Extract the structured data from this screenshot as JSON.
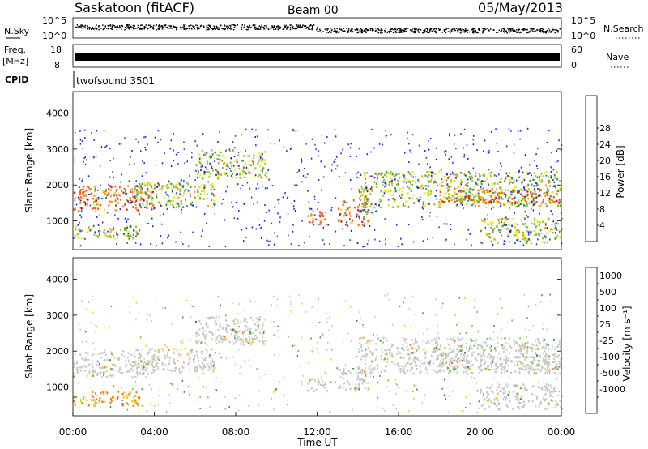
{
  "header": {
    "site": "Saskatoon (fitACF)",
    "beam": "Beam 00",
    "date": "05/May/2013"
  },
  "nsky_panel": {
    "left_label": "N.Sky",
    "right_label": "N.Search",
    "left_ticks": [
      "10^5",
      "10^0"
    ],
    "right_ticks": [
      "10^5",
      "10^0"
    ]
  },
  "freq_panel": {
    "left_label_1": "Freq.",
    "left_label_2": "[MHz]",
    "left_ticks": [
      "18",
      "8"
    ],
    "right_label": "Nave",
    "right_ticks": [
      "60",
      "0"
    ]
  },
  "cpid": {
    "label": "CPID",
    "value": "twofsound 3501"
  },
  "chart_data": [
    {
      "type": "heatmap",
      "name": "power",
      "ylabel": "Slant Range [km]",
      "yticks": [
        "1000",
        "2000",
        "3000",
        "4000"
      ],
      "ylim": [
        200,
        4600
      ],
      "xlim": [
        0,
        24
      ],
      "colorbar": {
        "label": "Power [dB]",
        "ticks": [
          "4",
          "8",
          "12",
          "16",
          "20",
          "24",
          "28"
        ],
        "colors": [
          "#1c1cf0",
          "#2a52a8",
          "#3c7a66",
          "#4e9a4a",
          "#8cc832",
          "#f5e614",
          "#f0a014",
          "#f06414",
          "#e61e14"
        ]
      },
      "echo_bands": [
        {
          "start_hr": 0.0,
          "end_hr": 4.0,
          "km_min": 1300,
          "km_max": 2000,
          "level": "high"
        },
        {
          "start_hr": 0.0,
          "end_hr": 3.2,
          "km_min": 500,
          "km_max": 900,
          "level": "mid"
        },
        {
          "start_hr": 3.0,
          "end_hr": 7.0,
          "km_min": 1400,
          "km_max": 2100,
          "level": "mid"
        },
        {
          "start_hr": 6.0,
          "end_hr": 9.5,
          "km_min": 2200,
          "km_max": 3000,
          "level": "mid"
        },
        {
          "start_hr": 11.5,
          "end_hr": 12.5,
          "km_min": 900,
          "km_max": 1300,
          "level": "high"
        },
        {
          "start_hr": 13.0,
          "end_hr": 14.5,
          "km_min": 900,
          "km_max": 1600,
          "level": "high"
        },
        {
          "start_hr": 14.0,
          "end_hr": 24.0,
          "km_min": 1400,
          "km_max": 2400,
          "level": "mid"
        },
        {
          "start_hr": 18.0,
          "end_hr": 24.0,
          "km_min": 1500,
          "km_max": 1900,
          "level": "high"
        },
        {
          "start_hr": 20.0,
          "end_hr": 24.0,
          "km_min": 400,
          "km_max": 1100,
          "level": "mid"
        }
      ]
    },
    {
      "type": "heatmap",
      "name": "velocity",
      "ylabel": "Slant Range [km]",
      "xlabel": "Time UT",
      "yticks": [
        "1000",
        "2000",
        "3000",
        "4000"
      ],
      "xticks": [
        "00:00",
        "04:00",
        "08:00",
        "12:00",
        "16:00",
        "20:00",
        "00:00"
      ],
      "ylim": [
        200,
        4600
      ],
      "xlim": [
        0,
        24
      ],
      "colorbar": {
        "label": "Velocity [m s⁻¹]",
        "ticks": [
          "1000",
          "500",
          "100",
          "25",
          "-25",
          "-100",
          "-500",
          "-1000"
        ],
        "colors": [
          "#1c3cb4",
          "#2a6ab4",
          "#3c8c50",
          "#64c832",
          "#c8c8c8",
          "#f5c814",
          "#f08214",
          "#f03c14",
          "#e61414"
        ]
      }
    }
  ]
}
